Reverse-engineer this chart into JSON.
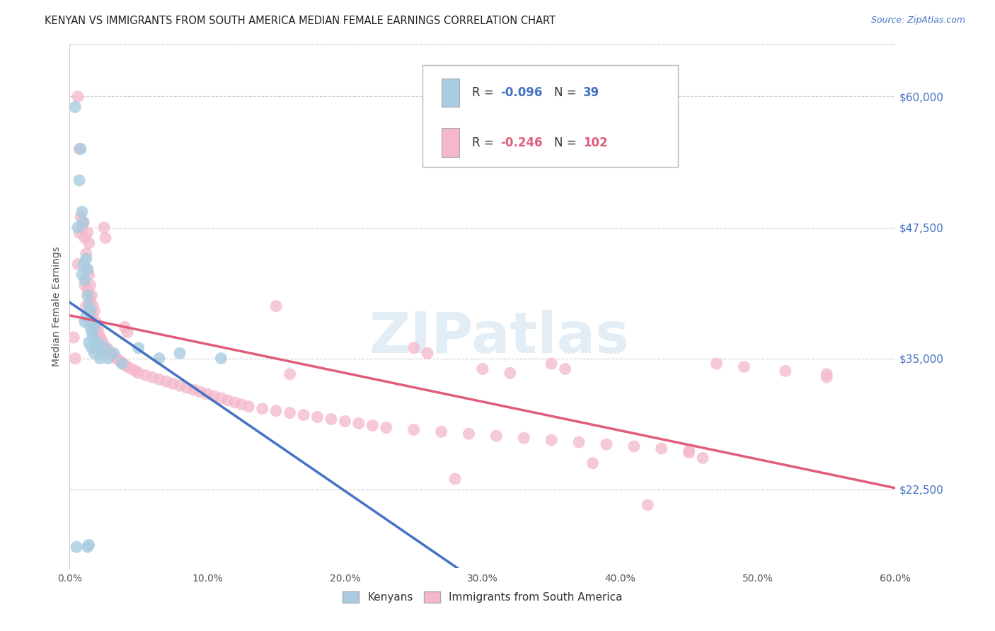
{
  "title": "KENYAN VS IMMIGRANTS FROM SOUTH AMERICA MEDIAN FEMALE EARNINGS CORRELATION CHART",
  "source": "Source: ZipAtlas.com",
  "ylabel_label": "Median Female Earnings",
  "xlim": [
    0.0,
    0.6
  ],
  "ylim": [
    15000,
    65000
  ],
  "legend_label1": "Kenyans",
  "legend_label2": "Immigrants from South America",
  "R1": -0.096,
  "N1": 39,
  "R2": -0.246,
  "N2": 102,
  "blue_color": "#a8cce0",
  "pink_color": "#f4b8ca",
  "blue_line_color": "#4472c4",
  "pink_line_color": "#e05c7a",
  "watermark": "ZIPatlas",
  "ytick_vals": [
    22500,
    35000,
    47500,
    60000
  ],
  "ytick_labels": [
    "$22,500",
    "$35,000",
    "$47,500",
    "$60,000"
  ],
  "blue_x": [
    0.004,
    0.005,
    0.006,
    0.007,
    0.008,
    0.009,
    0.009,
    0.01,
    0.01,
    0.011,
    0.011,
    0.012,
    0.012,
    0.013,
    0.013,
    0.014,
    0.014,
    0.015,
    0.015,
    0.016,
    0.016,
    0.017,
    0.018,
    0.018,
    0.019,
    0.02,
    0.021,
    0.022,
    0.024,
    0.026,
    0.028,
    0.032,
    0.038,
    0.05,
    0.065,
    0.08,
    0.11,
    0.013,
    0.014
  ],
  "blue_y": [
    59000,
    17000,
    47500,
    52000,
    55000,
    49000,
    43000,
    48000,
    44000,
    42500,
    38500,
    44500,
    39000,
    43500,
    41000,
    40000,
    36500,
    39500,
    38000,
    37500,
    36000,
    37000,
    38000,
    35500,
    36500,
    36000,
    36500,
    35000,
    35500,
    36000,
    35000,
    35500,
    34500,
    36000,
    35000,
    35500,
    35000,
    17000,
    17200
  ],
  "pink_x": [
    0.003,
    0.004,
    0.006,
    0.007,
    0.008,
    0.009,
    0.01,
    0.011,
    0.011,
    0.012,
    0.012,
    0.013,
    0.013,
    0.014,
    0.015,
    0.015,
    0.016,
    0.016,
    0.017,
    0.018,
    0.019,
    0.02,
    0.021,
    0.022,
    0.023,
    0.024,
    0.025,
    0.027,
    0.028,
    0.03,
    0.032,
    0.034,
    0.036,
    0.038,
    0.04,
    0.042,
    0.045,
    0.048,
    0.05,
    0.055,
    0.06,
    0.065,
    0.07,
    0.075,
    0.08,
    0.085,
    0.09,
    0.095,
    0.1,
    0.105,
    0.11,
    0.115,
    0.12,
    0.125,
    0.13,
    0.14,
    0.15,
    0.16,
    0.17,
    0.18,
    0.19,
    0.2,
    0.21,
    0.22,
    0.23,
    0.25,
    0.27,
    0.29,
    0.31,
    0.33,
    0.35,
    0.37,
    0.39,
    0.41,
    0.43,
    0.45,
    0.47,
    0.49,
    0.52,
    0.55,
    0.006,
    0.007,
    0.013,
    0.014,
    0.025,
    0.026,
    0.04,
    0.042,
    0.15,
    0.16,
    0.3,
    0.32,
    0.25,
    0.26,
    0.35,
    0.36,
    0.45,
    0.46,
    0.28,
    0.55,
    0.38,
    0.42
  ],
  "pink_y": [
    37000,
    35000,
    44000,
    47000,
    48500,
    47500,
    48000,
    46500,
    42000,
    45000,
    40000,
    43500,
    41500,
    43000,
    42000,
    40500,
    41000,
    39000,
    40000,
    39500,
    38500,
    38000,
    37500,
    37000,
    36800,
    36500,
    36200,
    36000,
    35800,
    35500,
    35200,
    35000,
    34800,
    34600,
    34400,
    34200,
    34000,
    33800,
    33600,
    33400,
    33200,
    33000,
    32800,
    32600,
    32400,
    32200,
    32000,
    31800,
    31600,
    31400,
    31200,
    31000,
    30800,
    30600,
    30400,
    30200,
    30000,
    29800,
    29600,
    29400,
    29200,
    29000,
    28800,
    28600,
    28400,
    28200,
    28000,
    27800,
    27600,
    27400,
    27200,
    27000,
    26800,
    26600,
    26400,
    26200,
    34500,
    34200,
    33800,
    33200,
    60000,
    55000,
    47000,
    46000,
    47500,
    46500,
    38000,
    37500,
    40000,
    33500,
    34000,
    33600,
    36000,
    35500,
    34500,
    34000,
    26000,
    25500,
    23500,
    33500,
    25000,
    21000
  ]
}
